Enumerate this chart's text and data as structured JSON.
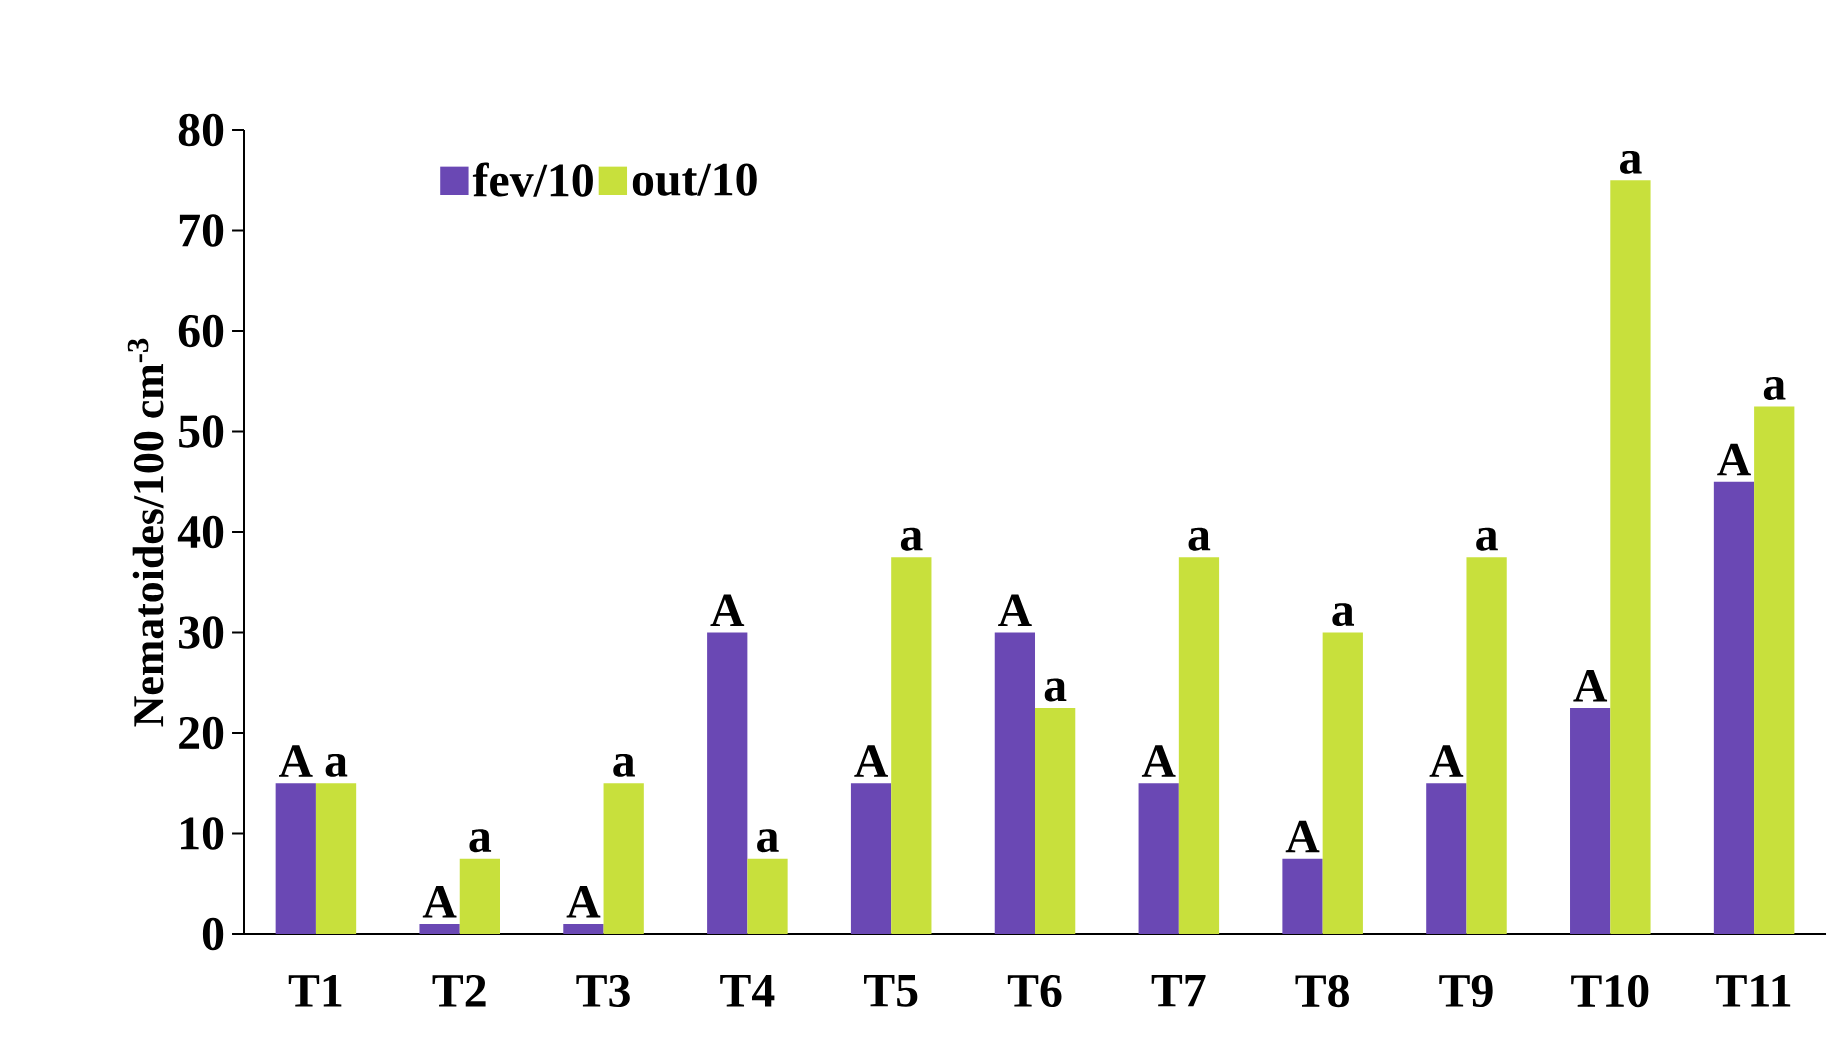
{
  "chart_data": {
    "type": "bar",
    "ylabel": "Nematoides/100 cm$^{-3}$",
    "categories": [
      "T1",
      "T2",
      "T3",
      "T4",
      "T5",
      "T6",
      "T7",
      "T8",
      "T9",
      "T10",
      "T11"
    ],
    "series": [
      {
        "name": "fev/10",
        "color": "#6a48b4",
        "values": [
          15,
          1,
          1,
          30,
          15,
          30,
          15,
          7.5,
          15,
          22.5,
          45
        ],
        "value_labels": [
          "A",
          "A",
          "A",
          "A",
          "A",
          "A",
          "A",
          "A",
          "A",
          "A",
          "A"
        ]
      },
      {
        "name": "out/10",
        "color": "#c8e03c",
        "values": [
          15,
          7.5,
          15,
          7.5,
          37.5,
          22.5,
          37.5,
          30,
          37.5,
          75,
          52.5
        ],
        "value_labels": [
          "a",
          "a",
          "a",
          "a",
          "a",
          "a",
          "a",
          "a",
          "a",
          "a",
          "a"
        ]
      }
    ],
    "ylim": [
      0,
      80
    ],
    "yticks": [
      0,
      10,
      20,
      30,
      40,
      50,
      60,
      70,
      80
    ],
    "grid": false,
    "legend": "top left"
  }
}
